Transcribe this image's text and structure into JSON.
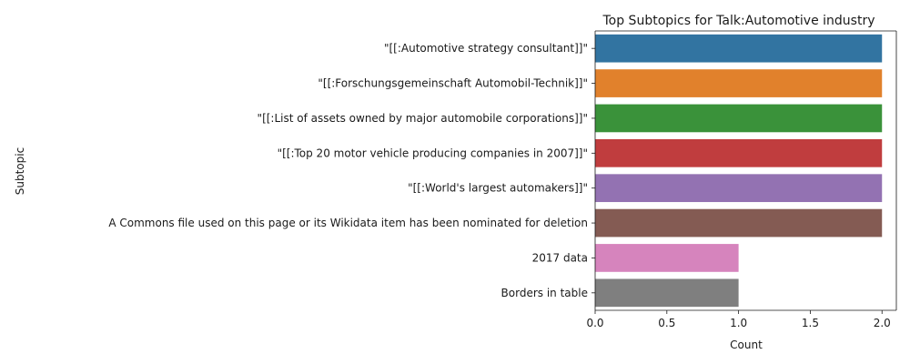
{
  "chart_data": {
    "type": "bar",
    "orientation": "horizontal",
    "title": "Top Subtopics for Talk:Automotive industry",
    "xlabel": "Count",
    "ylabel": "Subtopic",
    "categories": [
      "\"[[:Automotive strategy consultant]]\"",
      "\"[[:Forschungsgemeinschaft Automobil-Technik]]\"",
      "\"[[:List of assets owned by major automobile corporations]]\"",
      "\"[[:Top 20 motor vehicle producing companies in 2007]]\"",
      "\"[[:World's largest automakers]]\"",
      "A Commons file used on this page or its Wikidata item has been nominated for deletion",
      "2017 data",
      "Borders in table"
    ],
    "values": [
      2,
      2,
      2,
      2,
      2,
      2,
      1,
      1
    ],
    "colors": [
      "#3274a1",
      "#e1812c",
      "#3a923a",
      "#c03d3e",
      "#9372b2",
      "#845b53",
      "#d684bd",
      "#7f7f7f"
    ],
    "xlim": [
      0,
      2.1
    ],
    "xticks": [
      0.0,
      0.5,
      1.0,
      1.5,
      2.0
    ],
    "xtick_labels": [
      "0.0",
      "0.5",
      "1.0",
      "1.5",
      "2.0"
    ],
    "grid": false,
    "legend": false
  }
}
